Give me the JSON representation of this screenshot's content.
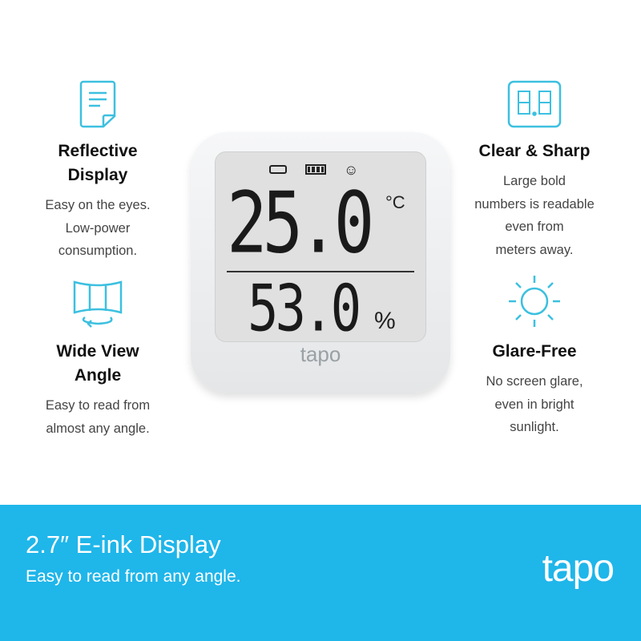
{
  "accent_color": "#3cc0e0",
  "banner_color": "#1fb6ea",
  "features": [
    {
      "icon": "document-icon",
      "title": "Reflective\nDisplay",
      "desc": "Easy on the eyes.\nLow-power\nconsumption."
    },
    {
      "icon": "wide-view-icon",
      "title": "Wide View\nAngle",
      "desc": "Easy to read from\nalmost any angle."
    },
    {
      "icon": "digits-icon",
      "title": "Clear & Sharp",
      "desc": "Large bold\nnumbers is readable\neven from\nmeters away."
    },
    {
      "icon": "sun-icon",
      "title": "Glare-Free",
      "desc": "No screen glare,\neven in bright\nsunlight."
    }
  ],
  "device": {
    "temperature": "25.0",
    "temp_unit": "°C",
    "humidity": "53.0",
    "humidity_unit": "%",
    "logo": "tapo"
  },
  "banner": {
    "title": "2.7″ E-ink Display",
    "subtitle": "Easy to read from any angle.",
    "logo": "tapo"
  }
}
